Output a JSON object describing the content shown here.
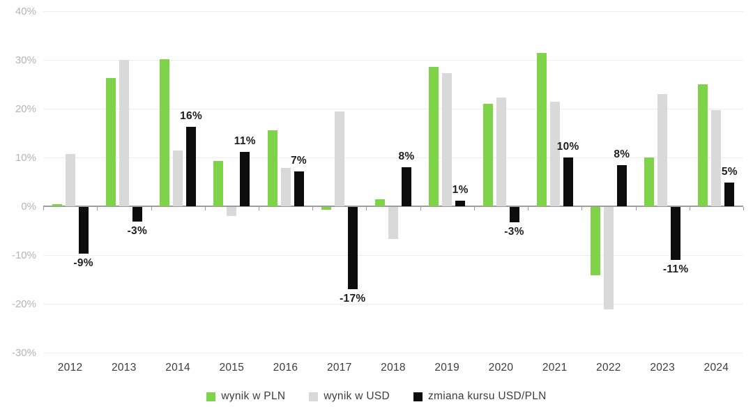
{
  "chart_data": {
    "type": "bar",
    "title": "",
    "categories": [
      "2012",
      "2013",
      "2014",
      "2015",
      "2016",
      "2017",
      "2018",
      "2019",
      "2020",
      "2021",
      "2022",
      "2023",
      "2024"
    ],
    "series": [
      {
        "name": "wynik w PLN",
        "color": "#7ed348",
        "values": [
          0.5,
          26.3,
          30.2,
          9.3,
          15.6,
          -0.5,
          1.5,
          28.6,
          21.0,
          31.4,
          -14.0,
          10.0,
          25.0
        ]
      },
      {
        "name": "wynik w USD",
        "color": "#d9d9d9",
        "values": [
          10.7,
          30.0,
          11.5,
          -1.8,
          7.9,
          19.4,
          -6.5,
          27.3,
          22.3,
          21.4,
          -21.0,
          23.0,
          19.7
        ]
      },
      {
        "name": "zmiana kursu USD/PLN",
        "color": "#0d0d0d",
        "values": [
          -9.5,
          -3.0,
          16.3,
          11.2,
          7.1,
          -16.9,
          8.0,
          1.1,
          -3.1,
          10.0,
          8.4,
          -10.9,
          4.9
        ],
        "point_labels": [
          "-9%",
          "-3%",
          "16%",
          "11%",
          "7%",
          "-17%",
          "8%",
          "1%",
          "-3%",
          "10%",
          "8%",
          "-11%",
          "5%"
        ]
      }
    ],
    "xlabel": "",
    "ylabel": "",
    "ylim": [
      -30,
      40
    ],
    "y_ticks": [
      40,
      30,
      20,
      10,
      0,
      -10,
      -20,
      -30
    ],
    "y_tick_labels": [
      "40%",
      "30%",
      "20%",
      "10%",
      "0%",
      "-10%",
      "-20%",
      "-30%"
    ],
    "grid": true,
    "legend_position": "bottom"
  },
  "style": {
    "grid_color": "#ececec",
    "zero_axis_color": "#9c9c9c",
    "y_label_color": "#b4b4b4",
    "x_label_color": "#3d3d3d",
    "data_label_color": "#1f1f1f",
    "background": "#ffffff"
  }
}
